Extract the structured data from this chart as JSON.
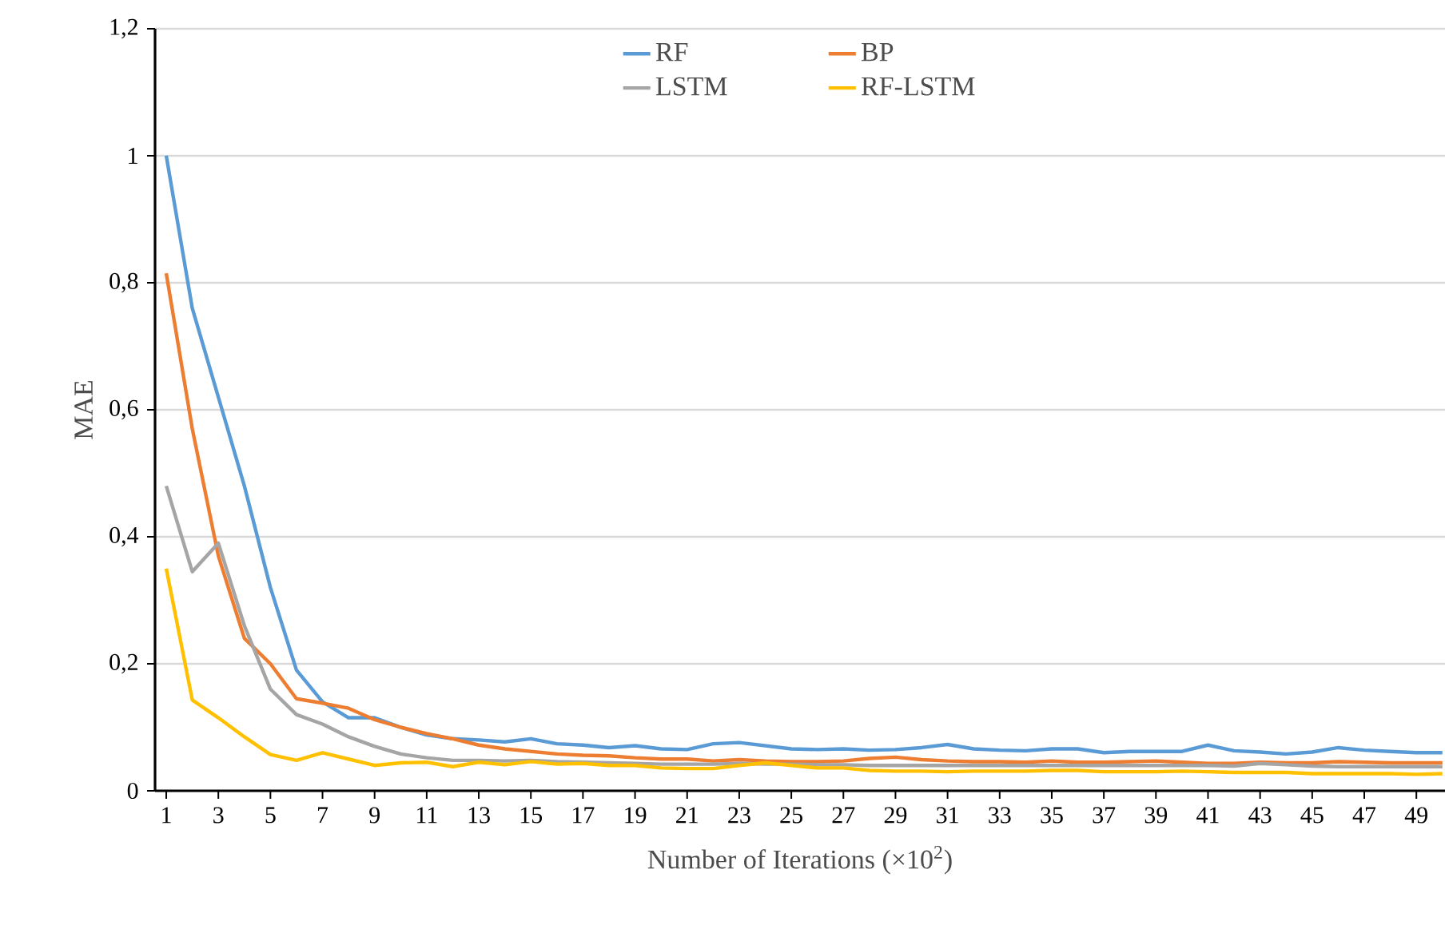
{
  "chart_data": {
    "type": "line",
    "xlabel": "Number of Iterations (×10$^{2}$)",
    "ylabel": "MAE",
    "categories": [
      "1",
      null,
      "3",
      null,
      "5",
      null,
      "7",
      null,
      "9",
      null,
      "11",
      null,
      "13",
      null,
      "15",
      null,
      "17",
      null,
      "19",
      null,
      "21",
      null,
      "23",
      null,
      "25",
      null,
      "27",
      null,
      "29",
      null,
      "31",
      null,
      "33",
      null,
      "35",
      null,
      "37",
      null,
      "39",
      null,
      "41",
      null,
      "43",
      null,
      "45",
      null,
      "47",
      null,
      "49",
      null
    ],
    "series": [
      {
        "name": "RF",
        "color": "#5b9bd5",
        "values": [
          1.0,
          0.76,
          0.62,
          0.48,
          0.32,
          0.19,
          0.14,
          0.115,
          0.115,
          0.1,
          0.088,
          0.082,
          0.08,
          0.077,
          0.082,
          0.074,
          0.072,
          0.068,
          0.071,
          0.066,
          0.065,
          0.074,
          0.076,
          0.071,
          0.066,
          0.065,
          0.066,
          0.064,
          0.065,
          0.068,
          0.073,
          0.066,
          0.064,
          0.063,
          0.066,
          0.066,
          0.06,
          0.062,
          0.062,
          0.062,
          0.072,
          0.063,
          0.061,
          0.058,
          0.061,
          0.068,
          0.064,
          0.062,
          0.06,
          0.06
        ]
      },
      {
        "name": "BP",
        "color": "#ed7d31",
        "values": [
          0.815,
          0.57,
          0.37,
          0.24,
          0.2,
          0.145,
          0.138,
          0.13,
          0.112,
          0.1,
          0.09,
          0.082,
          0.072,
          0.066,
          0.062,
          0.058,
          0.056,
          0.055,
          0.052,
          0.05,
          0.05,
          0.047,
          0.049,
          0.047,
          0.046,
          0.046,
          0.047,
          0.051,
          0.053,
          0.049,
          0.047,
          0.046,
          0.046,
          0.045,
          0.047,
          0.045,
          0.045,
          0.046,
          0.047,
          0.045,
          0.043,
          0.043,
          0.045,
          0.044,
          0.044,
          0.046,
          0.045,
          0.044,
          0.044,
          0.044
        ]
      },
      {
        "name": "LSTM",
        "color": "#a5a5a5",
        "values": [
          0.48,
          0.345,
          0.39,
          0.26,
          0.16,
          0.12,
          0.105,
          0.085,
          0.07,
          0.058,
          0.052,
          0.048,
          0.048,
          0.047,
          0.048,
          0.046,
          0.045,
          0.044,
          0.043,
          0.042,
          0.042,
          0.042,
          0.043,
          0.042,
          0.042,
          0.041,
          0.041,
          0.04,
          0.04,
          0.04,
          0.04,
          0.04,
          0.04,
          0.04,
          0.04,
          0.04,
          0.04,
          0.04,
          0.04,
          0.04,
          0.04,
          0.039,
          0.043,
          0.041,
          0.039,
          0.038,
          0.038,
          0.038,
          0.038,
          0.038
        ]
      },
      {
        "name": "RF-LSTM",
        "color": "#ffc000",
        "values": [
          0.35,
          0.143,
          0.115,
          0.085,
          0.057,
          0.048,
          0.06,
          0.05,
          0.04,
          0.044,
          0.045,
          0.038,
          0.045,
          0.041,
          0.046,
          0.042,
          0.043,
          0.04,
          0.04,
          0.036,
          0.035,
          0.035,
          0.04,
          0.044,
          0.04,
          0.036,
          0.036,
          0.032,
          0.031,
          0.031,
          0.03,
          0.031,
          0.031,
          0.031,
          0.032,
          0.032,
          0.03,
          0.03,
          0.03,
          0.031,
          0.03,
          0.029,
          0.029,
          0.029,
          0.027,
          0.027,
          0.027,
          0.027,
          0.026,
          0.027
        ]
      }
    ],
    "ylim": [
      0,
      1.2
    ],
    "yticks": [
      0,
      {
        "value": 0.2,
        "label": "0,2"
      },
      {
        "value": 0.4,
        "label": "0,4"
      },
      {
        "value": 0.6,
        "label": "0,6"
      },
      {
        "value": 0.8,
        "label": "0,8"
      },
      1,
      {
        "value": 1.2,
        "label": "1,2"
      }
    ],
    "grid": "y",
    "legend": "top",
    "marker": "none",
    "line_style": "solid"
  }
}
